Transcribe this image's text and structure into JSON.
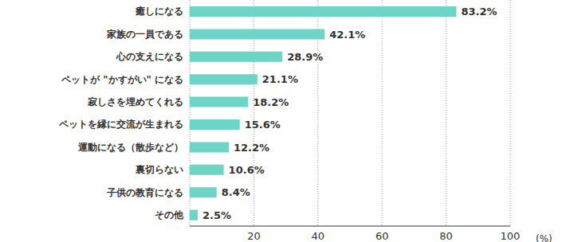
{
  "chart_data": {
    "type": "bar",
    "orientation": "horizontal",
    "categories": [
      "癒しになる",
      "家族の一員である",
      "心の支えになる",
      "ペットが \"かすがい\" になる",
      "寂しさを埋めてくれる",
      "ペットを縁に交流が生まれる",
      "運動になる（散歩など）",
      "裏切らない",
      "子供の教育になる",
      "その他"
    ],
    "values": [
      83.2,
      42.1,
      28.9,
      21.1,
      18.2,
      15.6,
      12.2,
      10.6,
      8.4,
      2.5
    ],
    "value_labels": [
      "83.2%",
      "42.1%",
      "28.9%",
      "21.1%",
      "18.2%",
      "15.6%",
      "12.2%",
      "10.6%",
      "8.4%",
      "2.5%"
    ],
    "data_labels": true,
    "color": "#6dd5c6",
    "xlabel": "(%)",
    "xlim": [
      0,
      100
    ],
    "xticks": [
      20,
      40,
      60,
      80,
      100
    ],
    "grid": true
  }
}
